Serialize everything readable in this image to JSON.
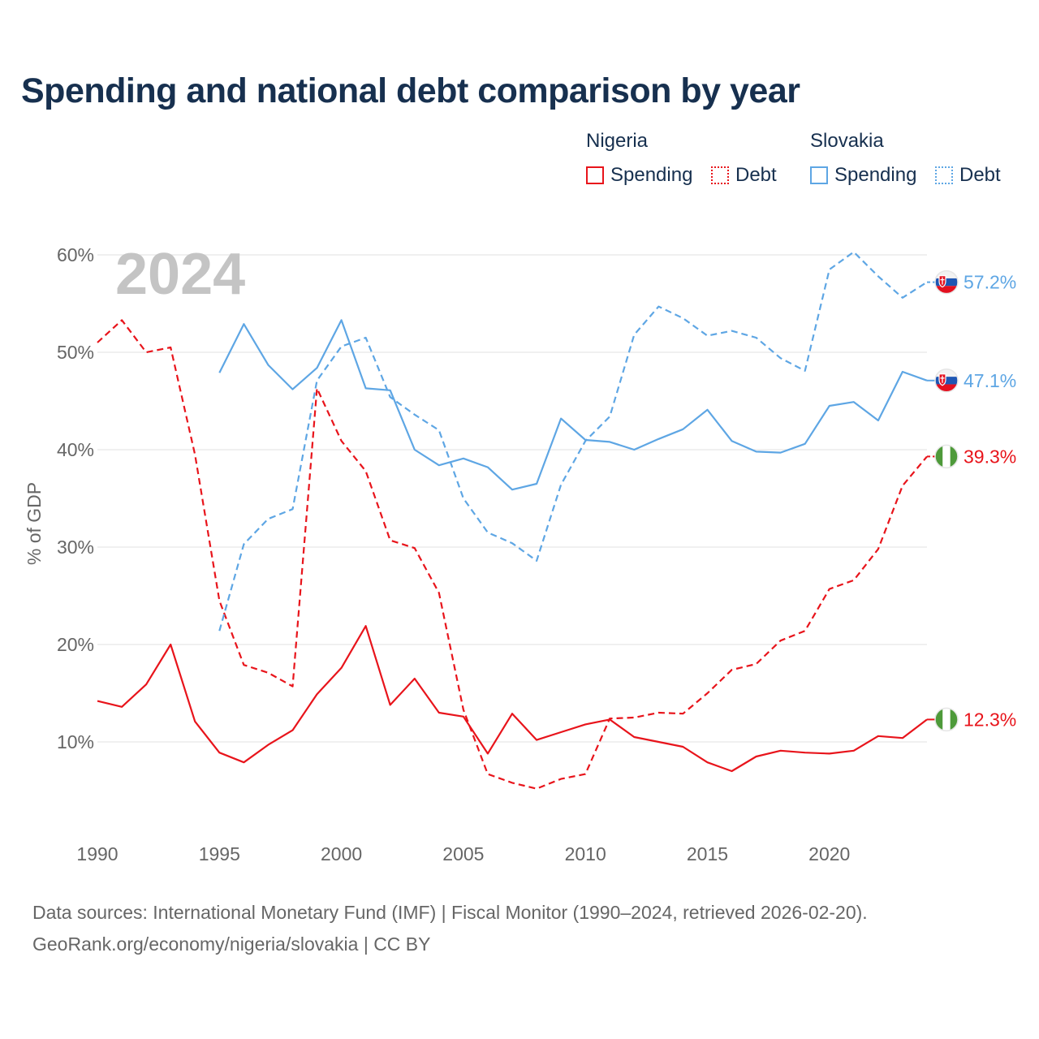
{
  "title": "Spending and national debt comparison by year",
  "year_label": "2024",
  "legend": {
    "nigeria": {
      "name": "Nigeria",
      "spending": "Spending",
      "debt": "Debt"
    },
    "slovakia": {
      "name": "Slovakia",
      "spending": "Spending",
      "debt": "Debt"
    }
  },
  "colors": {
    "nigeria": "#e8141b",
    "slovakia": "#5ea6e4",
    "title": "#17304f",
    "axis_text": "#666666",
    "grid": "#e6e6e6",
    "year_watermark": "#c4c4c4"
  },
  "footer": {
    "line1": "Data sources: International Monetary Fund (IMF) | Fiscal Monitor (1990–2024, retrieved 2026-02-20).",
    "line2": "GeoRank.org/economy/nigeria/slovakia | CC BY"
  },
  "chart_data": {
    "type": "line",
    "ylabel": "% of GDP",
    "xlabel": "",
    "xlim": [
      1990,
      2024
    ],
    "ylim": [
      1,
      60
    ],
    "yticks": [
      10,
      20,
      30,
      40,
      50,
      60
    ],
    "ytick_labels": [
      "10%",
      "20%",
      "30%",
      "40%",
      "50%",
      "60%"
    ],
    "xticks": [
      1990,
      1995,
      2000,
      2005,
      2010,
      2015,
      2020
    ],
    "xtick_labels": [
      "1990",
      "1995",
      "2000",
      "2005",
      "2010",
      "2015",
      "2020"
    ],
    "series": [
      {
        "name": "Nigeria Spending",
        "country": "nigeria",
        "style": "solid",
        "end_label": "12.3%",
        "flag": "nigeria-flag-icon",
        "x": [
          1990,
          1991,
          1992,
          1993,
          1994,
          1995,
          1996,
          1997,
          1998,
          1999,
          2000,
          2001,
          2002,
          2003,
          2004,
          2005,
          2006,
          2007,
          2008,
          2009,
          2010,
          2011,
          2012,
          2013,
          2014,
          2015,
          2016,
          2017,
          2018,
          2019,
          2020,
          2021,
          2022,
          2023,
          2024
        ],
        "values": [
          14.2,
          13.6,
          15.9,
          20.0,
          12.1,
          8.9,
          7.9,
          9.7,
          11.2,
          14.9,
          17.6,
          21.9,
          13.8,
          16.5,
          13.0,
          12.6,
          8.8,
          12.9,
          10.2,
          11.0,
          11.8,
          12.3,
          10.5,
          10.0,
          9.5,
          7.9,
          7.0,
          8.5,
          9.1,
          8.9,
          8.8,
          9.1,
          10.6,
          10.4,
          12.3
        ]
      },
      {
        "name": "Nigeria Debt",
        "country": "nigeria",
        "style": "dashed",
        "end_label": "39.3%",
        "flag": "nigeria-flag-icon",
        "x": [
          1990,
          1991,
          1992,
          1993,
          1994,
          1995,
          1996,
          1997,
          1998,
          1999,
          2000,
          2001,
          2002,
          2003,
          2004,
          2005,
          2006,
          2007,
          2008,
          2009,
          2010,
          2011,
          2012,
          2013,
          2014,
          2015,
          2016,
          2017,
          2018,
          2019,
          2020,
          2021,
          2022,
          2023,
          2024
        ],
        "values": [
          51.0,
          53.3,
          50.0,
          50.5,
          39.5,
          24.5,
          17.9,
          17.1,
          15.7,
          46.3,
          40.9,
          37.8,
          30.7,
          29.9,
          25.3,
          13.3,
          6.7,
          5.8,
          5.2,
          6.2,
          6.7,
          12.4,
          12.5,
          13.0,
          12.9,
          15.0,
          17.4,
          18.0,
          20.4,
          21.4,
          25.7,
          26.6,
          29.8,
          36.3,
          39.3
        ]
      },
      {
        "name": "Slovakia Spending",
        "country": "slovakia",
        "style": "solid",
        "end_label": "47.1%",
        "flag": "slovakia-flag-icon",
        "x": [
          1995,
          1996,
          1997,
          1998,
          1999,
          2000,
          2001,
          2002,
          2003,
          2004,
          2005,
          2006,
          2007,
          2008,
          2009,
          2010,
          2011,
          2012,
          2013,
          2014,
          2015,
          2016,
          2017,
          2018,
          2019,
          2020,
          2021,
          2022,
          2023,
          2024
        ],
        "values": [
          47.9,
          52.9,
          48.7,
          46.2,
          48.4,
          53.3,
          46.3,
          46.1,
          40.0,
          38.4,
          39.1,
          38.2,
          35.9,
          36.5,
          43.2,
          41.0,
          40.8,
          40.0,
          41.1,
          42.1,
          44.1,
          40.9,
          39.8,
          39.7,
          40.6,
          44.5,
          44.9,
          43.0,
          48.0,
          47.1
        ]
      },
      {
        "name": "Slovakia Debt",
        "country": "slovakia",
        "style": "dashed",
        "end_label": "57.2%",
        "flag": "slovakia-flag-icon",
        "x": [
          1995,
          1996,
          1997,
          1998,
          1999,
          2000,
          2001,
          2002,
          2003,
          2004,
          2005,
          2006,
          2007,
          2008,
          2009,
          2010,
          2011,
          2012,
          2013,
          2014,
          2015,
          2016,
          2017,
          2018,
          2019,
          2020,
          2021,
          2022,
          2023,
          2024
        ],
        "values": [
          21.4,
          30.3,
          32.9,
          33.9,
          47.1,
          50.6,
          51.5,
          45.4,
          43.6,
          42.0,
          35.0,
          31.5,
          30.4,
          28.6,
          36.4,
          40.9,
          43.4,
          51.8,
          54.7,
          53.5,
          51.7,
          52.2,
          51.5,
          49.4,
          48.1,
          58.5,
          60.3,
          57.8,
          55.6,
          57.2
        ]
      }
    ]
  }
}
